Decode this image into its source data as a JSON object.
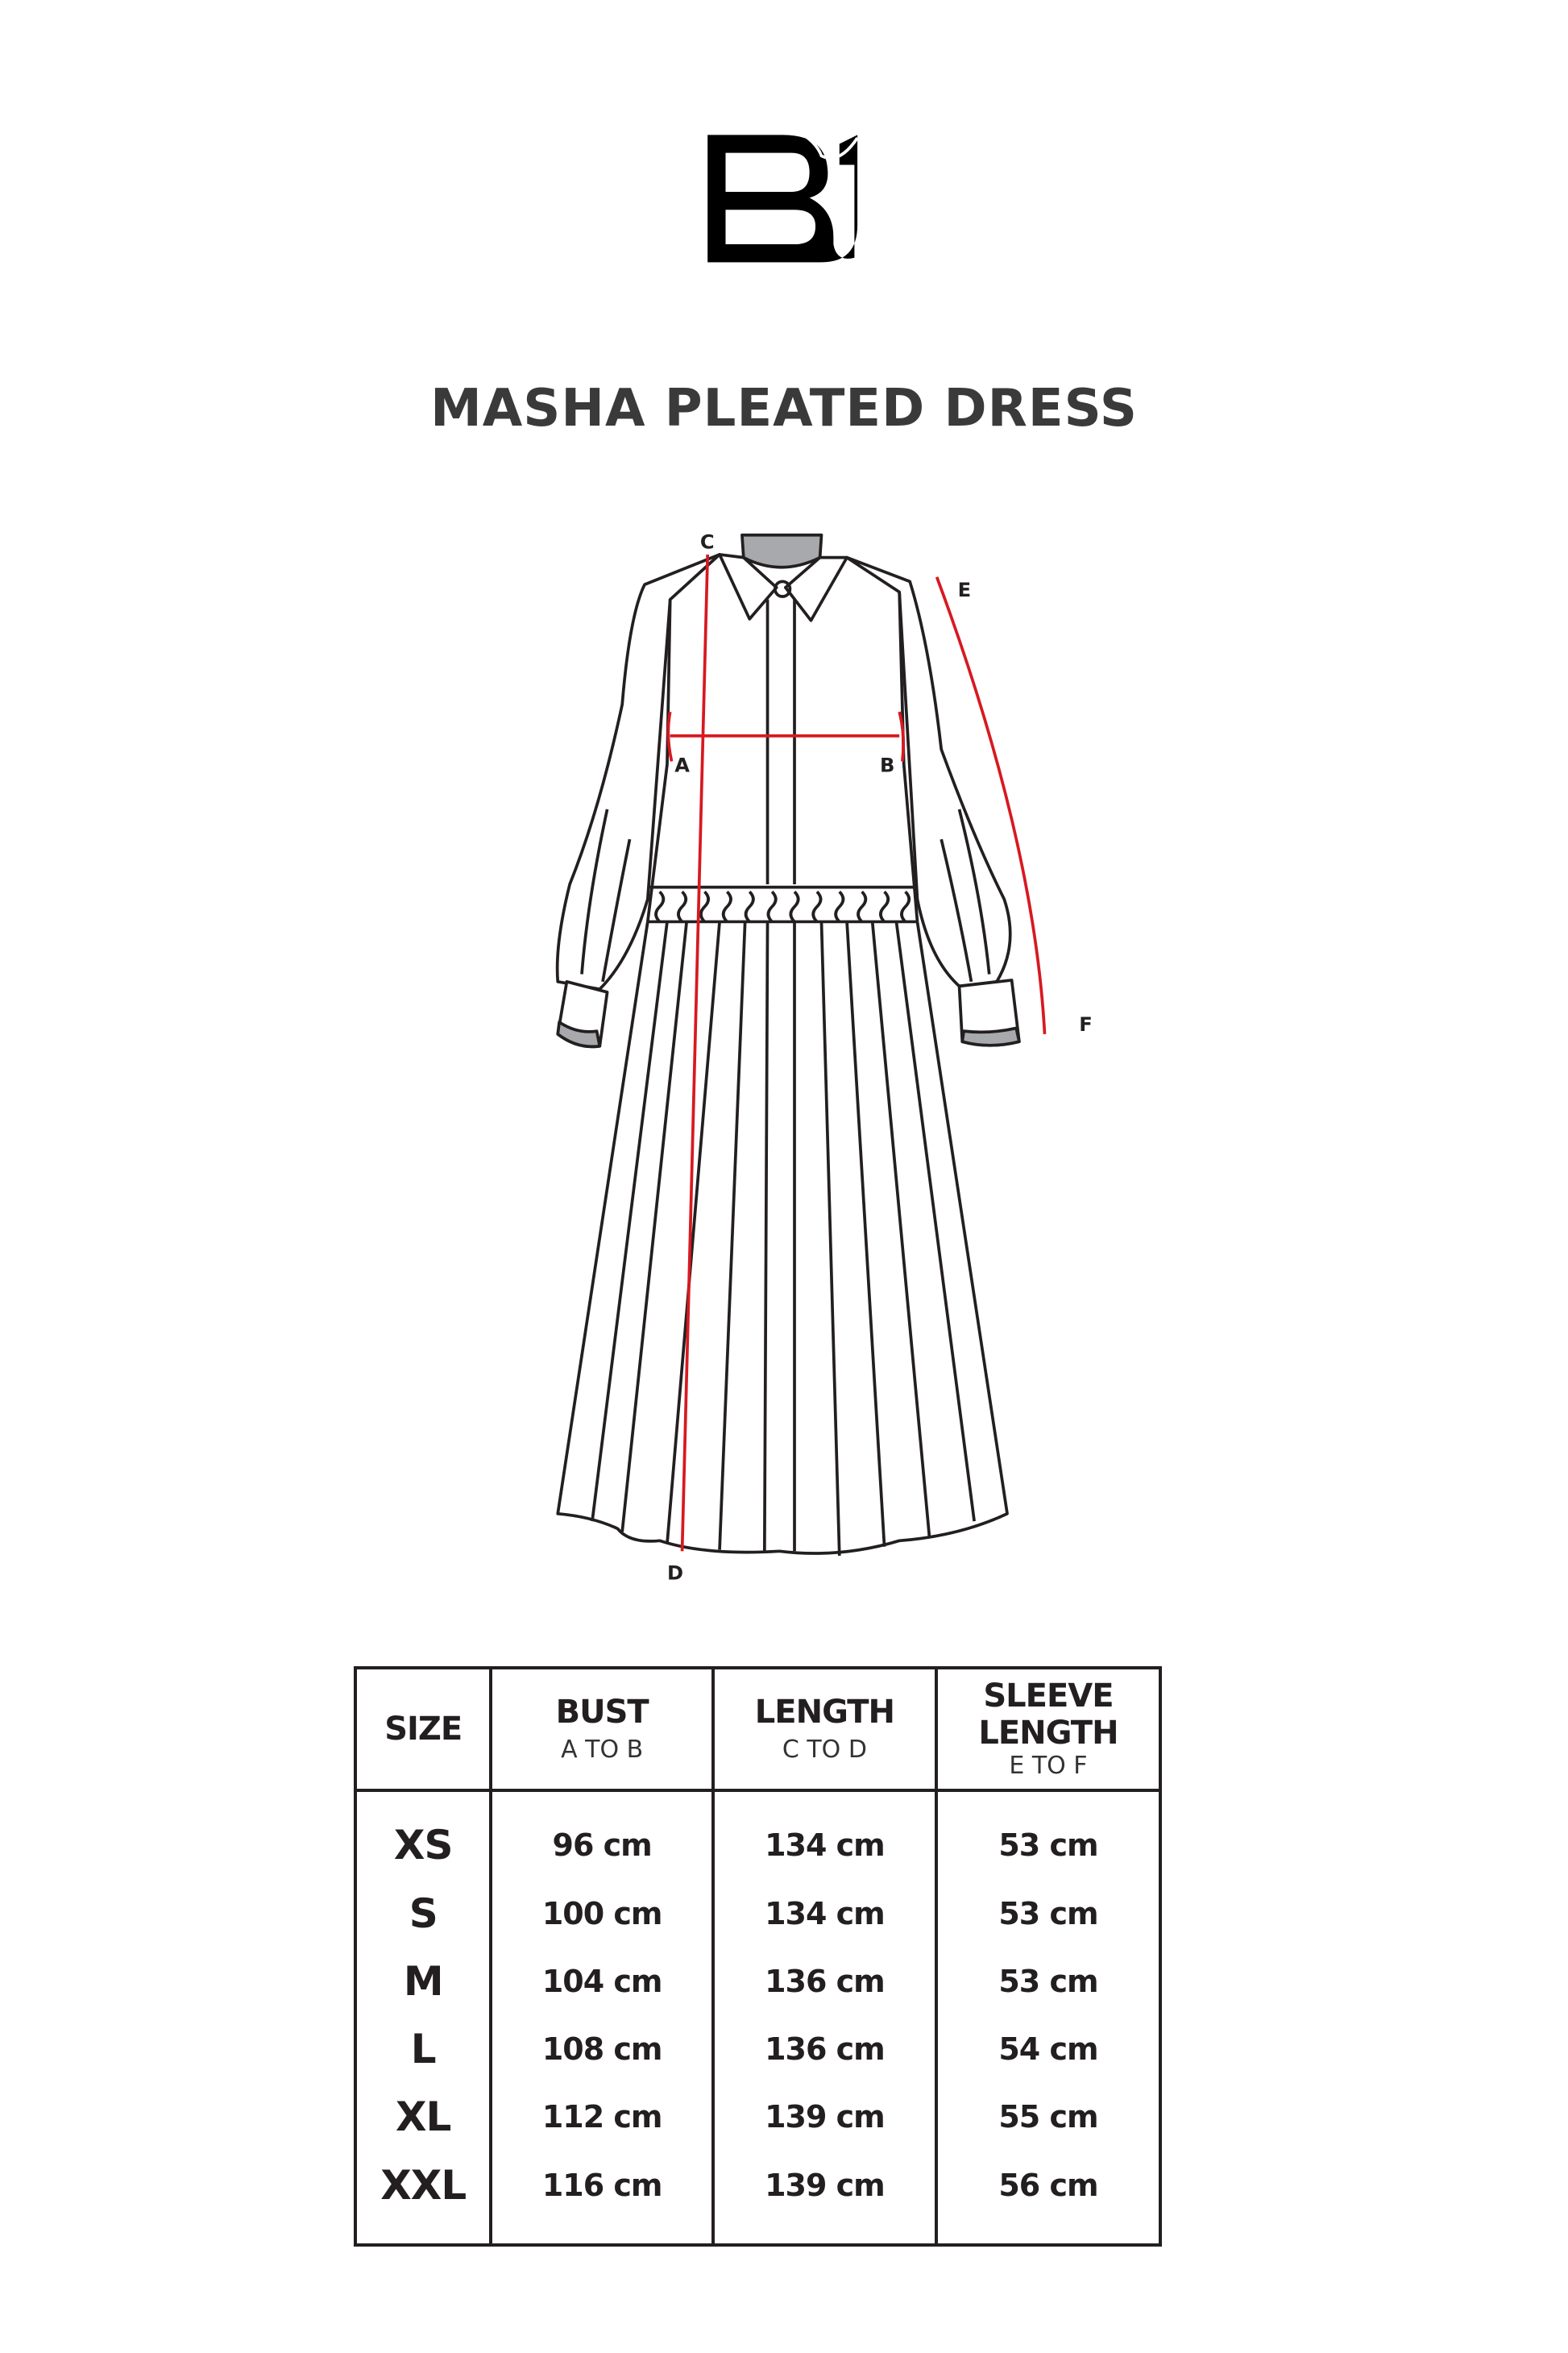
{
  "brand": {
    "logo_text": "BJ"
  },
  "title": "MASHA PLEATED DRESS",
  "diagram": {
    "points": {
      "A": "A",
      "B": "B",
      "C": "C",
      "D": "D",
      "E": "E",
      "F": "F"
    },
    "measure_color": "#d71920",
    "line_color": "#231f20"
  },
  "table": {
    "headers": [
      {
        "label": "SIZE",
        "sub": ""
      },
      {
        "label": "BUST",
        "sub": "A TO B"
      },
      {
        "label": "LENGTH",
        "sub": "C TO D"
      },
      {
        "label": "SLEEVE LENGTH",
        "sub": "E TO F"
      }
    ],
    "rows": [
      {
        "size": "XS",
        "bust": "96 cm",
        "length": "134 cm",
        "sleeve": "53 cm"
      },
      {
        "size": "S",
        "bust": "100 cm",
        "length": "134 cm",
        "sleeve": "53 cm"
      },
      {
        "size": "M",
        "bust": "104 cm",
        "length": "136 cm",
        "sleeve": "53 cm"
      },
      {
        "size": "L",
        "bust": "108 cm",
        "length": "136 cm",
        "sleeve": "54 cm"
      },
      {
        "size": "XL",
        "bust": "112 cm",
        "length": "139 cm",
        "sleeve": "55 cm"
      },
      {
        "size": "XXL",
        "bust": "116 cm",
        "length": "139 cm",
        "sleeve": "56 cm"
      }
    ]
  }
}
